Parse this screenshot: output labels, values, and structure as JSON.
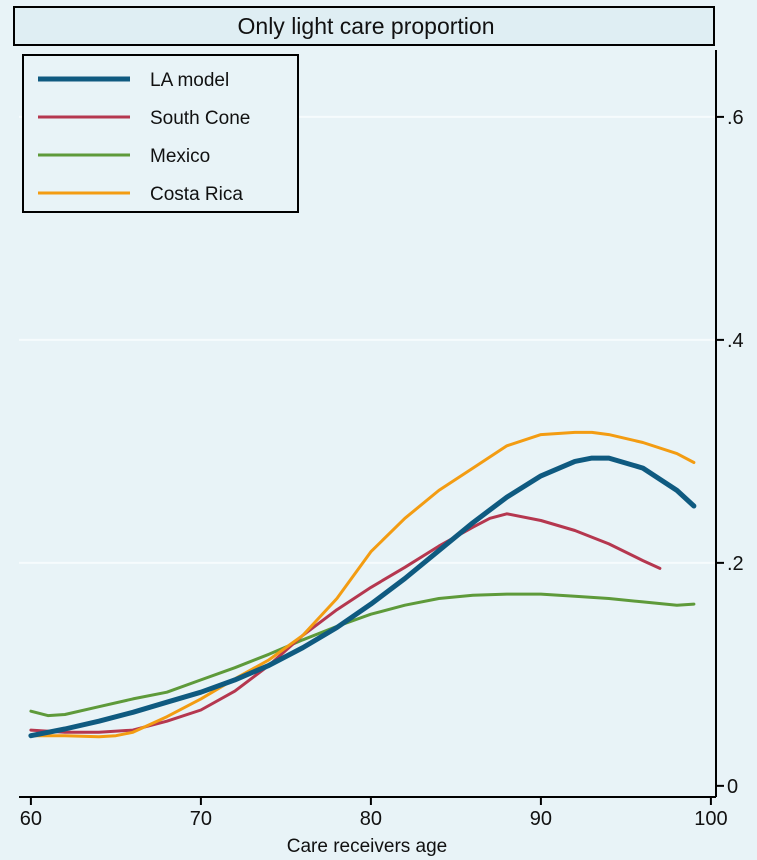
{
  "chart_data": {
    "type": "line",
    "title": "Only light care proportion",
    "xlabel": "Care receivers age",
    "ylabel": "",
    "xlim": [
      59.3,
      100.3
    ],
    "ylim": [
      -0.01,
      0.66
    ],
    "xticks": [
      60,
      70,
      80,
      90,
      100
    ],
    "yticks": [
      0,
      0.2,
      0.4,
      0.6
    ],
    "ytick_labels": [
      "0",
      ".2",
      ".4",
      ".6"
    ],
    "grid": true,
    "y_axis_side": "right",
    "legend_position": "top-left",
    "series": [
      {
        "name": "LA model",
        "color": "#0f5a80",
        "x": [
          60,
          62,
          64,
          66,
          68,
          70,
          72,
          74,
          76,
          78,
          80,
          82,
          84,
          86,
          88,
          90,
          92,
          93,
          94,
          96,
          98,
          99
        ],
        "y": [
          0.045,
          0.051,
          0.058,
          0.066,
          0.075,
          0.084,
          0.095,
          0.108,
          0.124,
          0.142,
          0.163,
          0.186,
          0.211,
          0.236,
          0.259,
          0.278,
          0.291,
          0.294,
          0.294,
          0.285,
          0.265,
          0.251
        ]
      },
      {
        "name": "South Cone",
        "color": "#b5374f",
        "x": [
          60,
          62,
          64,
          66,
          68,
          70,
          72,
          74,
          76,
          78,
          80,
          82,
          84,
          86,
          87,
          88,
          90,
          92,
          94,
          96,
          97
        ],
        "y": [
          0.05,
          0.048,
          0.048,
          0.05,
          0.058,
          0.068,
          0.085,
          0.108,
          0.135,
          0.158,
          0.178,
          0.196,
          0.215,
          0.232,
          0.24,
          0.244,
          0.238,
          0.229,
          0.217,
          0.202,
          0.195
        ]
      },
      {
        "name": "Mexico",
        "color": "#5e9a3a",
        "x": [
          60,
          61,
          62,
          64,
          66,
          68,
          70,
          72,
          74,
          76,
          78,
          80,
          82,
          84,
          86,
          88,
          90,
          92,
          94,
          96,
          98,
          99
        ],
        "y": [
          0.067,
          0.063,
          0.064,
          0.071,
          0.078,
          0.084,
          0.095,
          0.106,
          0.118,
          0.131,
          0.143,
          0.154,
          0.162,
          0.168,
          0.171,
          0.172,
          0.172,
          0.17,
          0.168,
          0.165,
          0.162,
          0.163
        ]
      },
      {
        "name": "Costa Rica",
        "color": "#f39c12",
        "x": [
          60,
          62,
          64,
          65,
          66,
          68,
          70,
          72,
          74,
          76,
          78,
          80,
          82,
          84,
          86,
          88,
          90,
          92,
          93,
          94,
          96,
          98,
          99
        ],
        "y": [
          0.045,
          0.045,
          0.044,
          0.045,
          0.048,
          0.062,
          0.078,
          0.096,
          0.113,
          0.135,
          0.168,
          0.21,
          0.24,
          0.265,
          0.285,
          0.305,
          0.315,
          0.317,
          0.317,
          0.315,
          0.308,
          0.298,
          0.29
        ]
      }
    ]
  }
}
